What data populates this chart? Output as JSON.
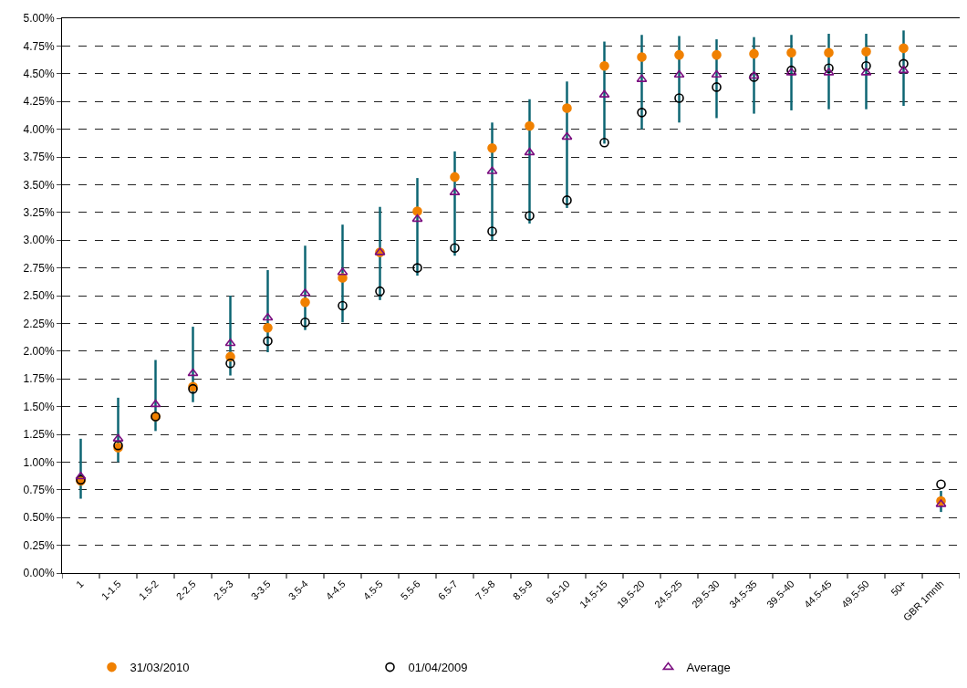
{
  "chart_data": {
    "type": "scatter",
    "categories": [
      "1",
      "1-1.5",
      "1.5-2",
      "2-2.5",
      "2.5-3",
      "3-3.5",
      "3.5-4",
      "4-4.5",
      "4.5-5",
      "5.5-6",
      "6.5-7",
      "7.5-8",
      "8.5-9",
      "9.5-10",
      "14.5-15",
      "19.5-20",
      "24.5-25",
      "29.5-30",
      "34.5-35",
      "39.5-40",
      "44.5-45",
      "49.5-50",
      "50+",
      "GBR 1mnth"
    ],
    "series": [
      {
        "type": "bar",
        "color": "#0b6472",
        "base": [
          0.67,
          1.0,
          1.28,
          1.54,
          1.78,
          1.99,
          2.19,
          2.26,
          2.46,
          2.68,
          2.86,
          3.0,
          3.15,
          3.29,
          3.87,
          4.0,
          4.06,
          4.1,
          4.14,
          4.17,
          4.18,
          4.18,
          4.21,
          0.55
        ],
        "values": [
          0.54,
          0.58,
          0.64,
          0.68,
          0.72,
          0.74,
          0.76,
          0.88,
          0.84,
          0.88,
          0.94,
          1.06,
          1.12,
          1.14,
          0.92,
          0.85,
          0.78,
          0.71,
          0.69,
          0.68,
          0.68,
          0.68,
          0.68,
          0.19
        ]
      },
      {
        "name": "31/03/2010",
        "color": "#f08000",
        "marker": "circle",
        "values": [
          0.83,
          1.13,
          1.41,
          1.68,
          1.95,
          2.21,
          2.44,
          2.66,
          2.89,
          3.26,
          3.57,
          3.83,
          4.03,
          4.19,
          4.57,
          4.65,
          4.67,
          4.67,
          4.68,
          4.69,
          4.69,
          4.7,
          4.73,
          0.65
        ]
      },
      {
        "name": "01/04/2009",
        "color": "#000000",
        "marker": "circle-open",
        "values": [
          0.84,
          1.15,
          1.41,
          1.66,
          1.89,
          2.09,
          2.26,
          2.41,
          2.54,
          2.75,
          2.93,
          3.08,
          3.22,
          3.36,
          3.88,
          4.15,
          4.28,
          4.38,
          4.47,
          4.53,
          4.55,
          4.57,
          4.59,
          0.8
        ]
      },
      {
        "name": "Average",
        "color": "#7b0f80",
        "marker": "triangle-open",
        "values": [
          0.87,
          1.21,
          1.52,
          1.8,
          2.07,
          2.3,
          2.52,
          2.71,
          2.89,
          3.19,
          3.43,
          3.62,
          3.79,
          3.93,
          4.31,
          4.45,
          4.49,
          4.49,
          4.48,
          4.51,
          4.51,
          4.51,
          4.53,
          0.62
        ]
      }
    ],
    "ylim": [
      0,
      5
    ],
    "yticks": [
      {
        "value": 0,
        "label": "0.00%"
      },
      {
        "value": 0.25,
        "label": "0.25%"
      },
      {
        "value": 0.5,
        "label": "0.50%"
      },
      {
        "value": 0.75,
        "label": "0.75%"
      },
      {
        "value": 1,
        "label": "1.00%"
      },
      {
        "value": 1.25,
        "label": "1.25%"
      },
      {
        "value": 1.5,
        "label": "1.50%"
      },
      {
        "value": 1.75,
        "label": "1.75%"
      },
      {
        "value": 2,
        "label": "2.00%"
      },
      {
        "value": 2.25,
        "label": "2.25%"
      },
      {
        "value": 2.5,
        "label": "2.50%"
      },
      {
        "value": 2.75,
        "label": "2.75%"
      },
      {
        "value": 3,
        "label": "3.00%"
      },
      {
        "value": 3.25,
        "label": "3.25%"
      },
      {
        "value": 3.5,
        "label": "3.50%"
      },
      {
        "value": 3.75,
        "label": "3.75%"
      },
      {
        "value": 4,
        "label": "4.00%"
      },
      {
        "value": 4.25,
        "label": "4.25%"
      },
      {
        "value": 4.5,
        "label": "4.50%"
      },
      {
        "value": 4.75,
        "label": "4.75%"
      },
      {
        "value": 5,
        "label": "5.00%"
      }
    ],
    "grid": "y",
    "line_style": "dashed",
    "legend": "bottom"
  }
}
